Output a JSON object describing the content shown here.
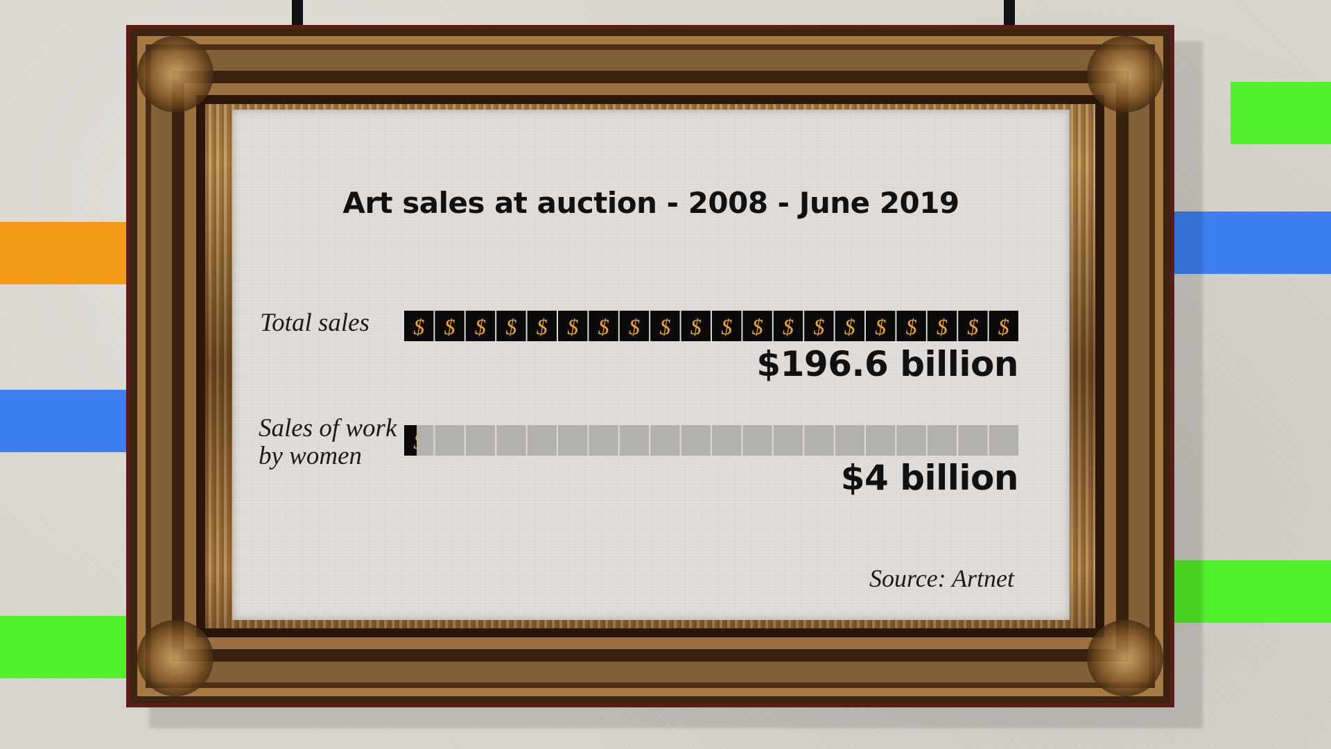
{
  "colors": {
    "orange": "#f29b18",
    "blue": "#3d7ff0",
    "green": "#52f02c",
    "filled_cell": "#0a0a0a",
    "empty_cell": "#b3b1ae",
    "dollar": "#f2a51a"
  },
  "chart_data": {
    "type": "bar",
    "title": "Art sales at auction - 2008 - June 2019",
    "orientation": "horizontal",
    "unit": "billion USD",
    "max_value": 196.6,
    "categories": [
      "Total sales",
      "Sales of work by women"
    ],
    "values": [
      196.6,
      4
    ],
    "value_labels": [
      "$196.6 billion",
      "$4 billion"
    ],
    "cell_symbol": "$",
    "source": "Source: Artnet"
  },
  "labels": {
    "total": "Total sales",
    "women_line1": "Sales of work",
    "women_line2": "by women"
  }
}
